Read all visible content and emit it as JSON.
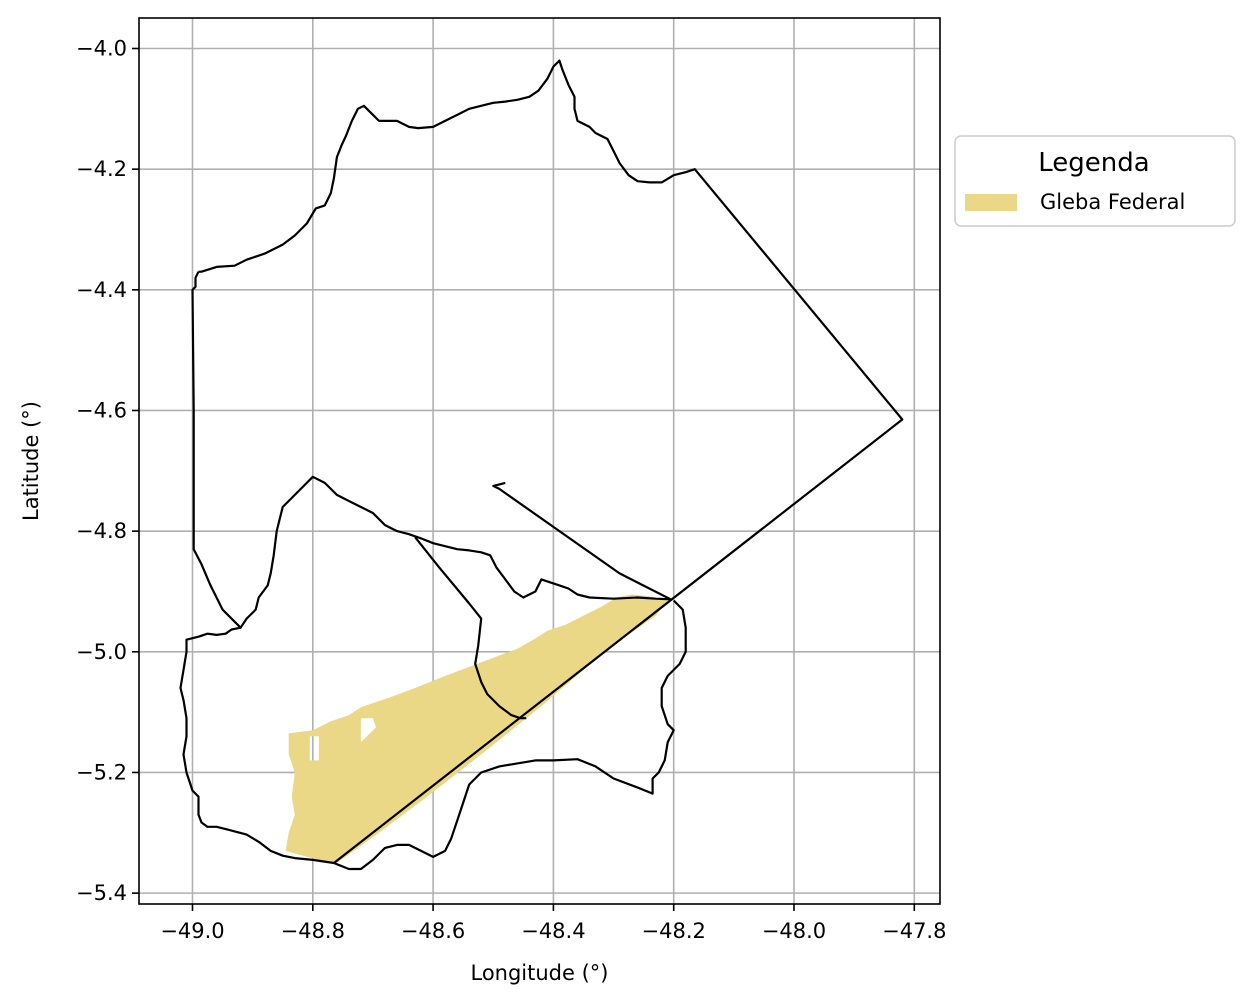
{
  "chart_data": {
    "type": "map",
    "xlabel": "Longitude (°)",
    "ylabel": "Latitude (°)",
    "xlim": [
      -49.09,
      -47.76
    ],
    "ylim": [
      -5.42,
      -3.95
    ],
    "grid": true,
    "xticks": [
      -49.0,
      -48.8,
      -48.6,
      -48.4,
      -48.2,
      -48.0,
      -47.8
    ],
    "xtick_labels": [
      "−49.0",
      "−48.8",
      "−48.6",
      "−48.4",
      "−48.2",
      "−48.0",
      "−47.8"
    ],
    "yticks": [
      -4.0,
      -4.2,
      -4.4,
      -4.6,
      -4.8,
      -5.0,
      -5.2,
      -5.4
    ],
    "ytick_labels": [
      "−4.0",
      "−4.2",
      "−4.4",
      "−4.6",
      "−4.8",
      "−5.0",
      "−5.2",
      "−5.4"
    ],
    "legend": {
      "title": "Legenda",
      "placement": "outside right, upper",
      "entries": [
        {
          "label": "Gleba Federal",
          "color": "#ebd886"
        }
      ]
    },
    "boundary_color": "#000000",
    "boundaries": [
      {
        "id": "north-municipality",
        "coords": [
          [
            -48.99,
            -4.37
          ],
          [
            -48.985,
            -4.37
          ],
          [
            -48.96,
            -4.362
          ],
          [
            -48.93,
            -4.36
          ],
          [
            -48.91,
            -4.35
          ],
          [
            -48.88,
            -4.34
          ],
          [
            -48.85,
            -4.325
          ],
          [
            -48.83,
            -4.31
          ],
          [
            -48.81,
            -4.29
          ],
          [
            -48.795,
            -4.265
          ],
          [
            -48.78,
            -4.26
          ],
          [
            -48.77,
            -4.24
          ],
          [
            -48.765,
            -4.215
          ],
          [
            -48.76,
            -4.18
          ],
          [
            -48.752,
            -4.16
          ],
          [
            -48.745,
            -4.145
          ],
          [
            -48.735,
            -4.12
          ],
          [
            -48.725,
            -4.1
          ],
          [
            -48.715,
            -4.095
          ],
          [
            -48.705,
            -4.105
          ],
          [
            -48.69,
            -4.12
          ],
          [
            -48.675,
            -4.12
          ],
          [
            -48.66,
            -4.12
          ],
          [
            -48.64,
            -4.13
          ],
          [
            -48.625,
            -4.132
          ],
          [
            -48.6,
            -4.13
          ],
          [
            -48.58,
            -4.12
          ],
          [
            -48.56,
            -4.11
          ],
          [
            -48.54,
            -4.1
          ],
          [
            -48.52,
            -4.095
          ],
          [
            -48.5,
            -4.09
          ],
          [
            -48.48,
            -4.088
          ],
          [
            -48.46,
            -4.085
          ],
          [
            -48.44,
            -4.08
          ],
          [
            -48.425,
            -4.07
          ],
          [
            -48.41,
            -4.05
          ],
          [
            -48.4,
            -4.03
          ],
          [
            -48.39,
            -4.02
          ],
          [
            -48.385,
            -4.035
          ],
          [
            -48.375,
            -4.06
          ],
          [
            -48.365,
            -4.08
          ],
          [
            -48.365,
            -4.1
          ],
          [
            -48.36,
            -4.12
          ],
          [
            -48.34,
            -4.13
          ],
          [
            -48.33,
            -4.14
          ],
          [
            -48.31,
            -4.15
          ],
          [
            -48.3,
            -4.17
          ],
          [
            -48.29,
            -4.19
          ],
          [
            -48.275,
            -4.21
          ],
          [
            -48.26,
            -4.22
          ],
          [
            -48.24,
            -4.222
          ],
          [
            -48.22,
            -4.222
          ],
          [
            -48.2,
            -4.21
          ],
          [
            -48.18,
            -4.205
          ],
          [
            -48.165,
            -4.2
          ],
          [
            -47.82,
            -4.615
          ],
          [
            -48.765,
            -5.35
          ],
          [
            -48.8,
            -5.345
          ],
          [
            -48.83,
            -5.342
          ],
          [
            -48.85,
            -5.338
          ],
          [
            -48.87,
            -5.33
          ],
          [
            -48.89,
            -5.315
          ],
          [
            -48.91,
            -5.303
          ],
          [
            -48.94,
            -5.295
          ],
          [
            -48.96,
            -5.29
          ],
          [
            -48.975,
            -5.29
          ],
          [
            -48.985,
            -5.283
          ],
          [
            -48.99,
            -5.27
          ],
          [
            -48.99,
            -5.24
          ],
          [
            -49.0,
            -5.23
          ],
          [
            -49.01,
            -5.2
          ],
          [
            -49.015,
            -5.17
          ],
          [
            -49.01,
            -5.14
          ],
          [
            -49.01,
            -5.11
          ],
          [
            -49.015,
            -5.08
          ],
          [
            -49.02,
            -5.06
          ],
          [
            -49.015,
            -5.03
          ],
          [
            -49.01,
            -5.0
          ],
          [
            -49.01,
            -4.98
          ],
          [
            -48.99,
            -4.975
          ],
          [
            -48.975,
            -4.97
          ],
          [
            -48.96,
            -4.972
          ],
          [
            -48.945,
            -4.97
          ],
          [
            -48.935,
            -4.963
          ],
          [
            -48.92,
            -4.96
          ],
          [
            -48.95,
            -4.93
          ],
          [
            -48.97,
            -4.89
          ],
          [
            -48.985,
            -4.855
          ],
          [
            -48.998,
            -4.83
          ],
          [
            -48.998,
            -4.6
          ],
          [
            -49.0,
            -4.4
          ],
          [
            -48.995,
            -4.395
          ],
          [
            -48.995,
            -4.38
          ],
          [
            -48.99,
            -4.37
          ]
        ]
      },
      {
        "id": "central-municipality",
        "coords": [
          [
            -48.92,
            -4.96
          ],
          [
            -48.91,
            -4.945
          ],
          [
            -48.895,
            -4.93
          ],
          [
            -48.89,
            -4.91
          ],
          [
            -48.875,
            -4.89
          ],
          [
            -48.87,
            -4.87
          ],
          [
            -48.865,
            -4.84
          ],
          [
            -48.86,
            -4.8
          ],
          [
            -48.85,
            -4.76
          ],
          [
            -48.83,
            -4.74
          ],
          [
            -48.815,
            -4.725
          ],
          [
            -48.8,
            -4.71
          ],
          [
            -48.78,
            -4.72
          ],
          [
            -48.76,
            -4.74
          ],
          [
            -48.74,
            -4.75
          ],
          [
            -48.72,
            -4.76
          ],
          [
            -48.7,
            -4.77
          ],
          [
            -48.68,
            -4.79
          ],
          [
            -48.66,
            -4.8
          ],
          [
            -48.64,
            -4.805
          ],
          [
            -48.62,
            -4.812
          ],
          [
            -48.6,
            -4.82
          ],
          [
            -48.58,
            -4.825
          ],
          [
            -48.56,
            -4.83
          ],
          [
            -48.54,
            -4.832
          ],
          [
            -48.52,
            -4.835
          ],
          [
            -48.505,
            -4.84
          ],
          [
            -48.495,
            -4.86
          ],
          [
            -48.48,
            -4.88
          ],
          [
            -48.465,
            -4.9
          ],
          [
            -48.45,
            -4.91
          ],
          [
            -48.43,
            -4.9
          ],
          [
            -48.42,
            -4.88
          ],
          [
            -48.405,
            -4.885
          ],
          [
            -48.39,
            -4.89
          ],
          [
            -48.375,
            -4.895
          ],
          [
            -48.36,
            -4.905
          ],
          [
            -48.34,
            -4.91
          ],
          [
            -48.3,
            -4.912
          ],
          [
            -48.26,
            -4.91
          ],
          [
            -48.23,
            -4.912
          ],
          [
            -48.205,
            -4.913
          ],
          [
            -48.29,
            -4.87
          ],
          [
            -48.49,
            -4.73
          ],
          [
            -48.5,
            -4.725
          ],
          [
            -48.48,
            -4.72
          ]
        ]
      },
      {
        "id": "interior-divider",
        "coords": [
          [
            -48.63,
            -4.81
          ],
          [
            -48.59,
            -4.86
          ],
          [
            -48.54,
            -4.92
          ],
          [
            -48.52,
            -4.945
          ],
          [
            -48.525,
            -4.99
          ],
          [
            -48.53,
            -5.02
          ],
          [
            -48.52,
            -5.05
          ],
          [
            -48.51,
            -5.07
          ],
          [
            -48.49,
            -5.09
          ],
          [
            -48.47,
            -5.105
          ],
          [
            -48.455,
            -5.11
          ],
          [
            -48.445,
            -5.11
          ]
        ]
      },
      {
        "id": "south-lobe",
        "coords": [
          [
            -48.2,
            -4.915
          ],
          [
            -48.185,
            -4.93
          ],
          [
            -48.18,
            -4.96
          ],
          [
            -48.18,
            -5.0
          ],
          [
            -48.19,
            -5.02
          ],
          [
            -48.21,
            -5.04
          ],
          [
            -48.22,
            -5.06
          ],
          [
            -48.22,
            -5.09
          ],
          [
            -48.21,
            -5.12
          ],
          [
            -48.2,
            -5.13
          ],
          [
            -48.21,
            -5.15
          ],
          [
            -48.215,
            -5.18
          ],
          [
            -48.225,
            -5.2
          ],
          [
            -48.235,
            -5.21
          ],
          [
            -48.235,
            -5.235
          ],
          [
            -48.26,
            -5.225
          ],
          [
            -48.3,
            -5.21
          ],
          [
            -48.33,
            -5.19
          ],
          [
            -48.36,
            -5.178
          ],
          [
            -48.4,
            -5.18
          ],
          [
            -48.43,
            -5.18
          ],
          [
            -48.46,
            -5.185
          ],
          [
            -48.49,
            -5.19
          ],
          [
            -48.52,
            -5.2
          ],
          [
            -48.54,
            -5.22
          ],
          [
            -48.55,
            -5.25
          ],
          [
            -48.56,
            -5.28
          ],
          [
            -48.57,
            -5.31
          ],
          [
            -48.58,
            -5.33
          ],
          [
            -48.6,
            -5.34
          ],
          [
            -48.62,
            -5.33
          ],
          [
            -48.64,
            -5.32
          ],
          [
            -48.66,
            -5.32
          ],
          [
            -48.68,
            -5.325
          ],
          [
            -48.7,
            -5.345
          ],
          [
            -48.72,
            -5.36
          ],
          [
            -48.74,
            -5.36
          ],
          [
            -48.765,
            -5.35
          ]
        ]
      }
    ],
    "filled_areas": [
      {
        "label": "Gleba Federal",
        "coords": [
          [
            -48.84,
            -5.135
          ],
          [
            -48.8,
            -5.13
          ],
          [
            -48.77,
            -5.115
          ],
          [
            -48.74,
            -5.105
          ],
          [
            -48.72,
            -5.092
          ],
          [
            -48.7,
            -5.085
          ],
          [
            -48.67,
            -5.075
          ],
          [
            -48.63,
            -5.06
          ],
          [
            -48.58,
            -5.04
          ],
          [
            -48.54,
            -5.025
          ],
          [
            -48.5,
            -5.01
          ],
          [
            -48.46,
            -4.995
          ],
          [
            -48.43,
            -4.978
          ],
          [
            -48.41,
            -4.965
          ],
          [
            -48.38,
            -4.955
          ],
          [
            -48.35,
            -4.94
          ],
          [
            -48.32,
            -4.925
          ],
          [
            -48.295,
            -4.91
          ],
          [
            -48.27,
            -4.905
          ],
          [
            -48.24,
            -4.908
          ],
          [
            -48.21,
            -4.915
          ],
          [
            -48.23,
            -4.94
          ],
          [
            -48.28,
            -4.975
          ],
          [
            -48.35,
            -5.03
          ],
          [
            -48.42,
            -5.09
          ],
          [
            -48.52,
            -5.17
          ],
          [
            -48.61,
            -5.24
          ],
          [
            -48.69,
            -5.3
          ],
          [
            -48.76,
            -5.35
          ],
          [
            -48.79,
            -5.345
          ],
          [
            -48.82,
            -5.337
          ],
          [
            -48.845,
            -5.33
          ],
          [
            -48.84,
            -5.3
          ],
          [
            -48.83,
            -5.27
          ],
          [
            -48.835,
            -5.24
          ],
          [
            -48.83,
            -5.2
          ],
          [
            -48.84,
            -5.17
          ],
          [
            -48.84,
            -5.135
          ]
        ],
        "holes": [
          [
            [
              -48.805,
              -5.14
            ],
            [
              -48.79,
              -5.14
            ],
            [
              -48.79,
              -5.18
            ],
            [
              -48.805,
              -5.18
            ]
          ],
          [
            [
              -48.72,
              -5.11
            ],
            [
              -48.7,
              -5.11
            ],
            [
              -48.695,
              -5.125
            ],
            [
              -48.72,
              -5.15
            ]
          ]
        ]
      }
    ]
  }
}
